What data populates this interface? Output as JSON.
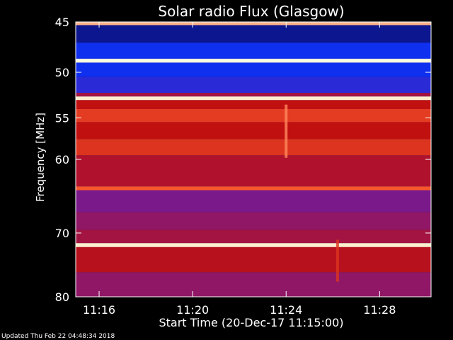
{
  "chart_data": {
    "type": "heatmap",
    "title": "Solar radio Flux (Glasgow)",
    "xlabel": "Start Time (20-Dec-17 11:15:00)",
    "ylabel": "Frequency [MHz]",
    "x_ticks": [
      "11:16",
      "11:20",
      "11:24",
      "11:28"
    ],
    "x_tick_minutes": [
      16,
      20,
      24,
      28
    ],
    "xlim_minutes": [
      15.0,
      30.2
    ],
    "y_ticks": [
      45,
      50,
      55,
      60,
      70,
      80
    ],
    "ylim_mhz": [
      45,
      80
    ],
    "y_scale": "log",
    "colors": {
      "background": "#000000",
      "low": "#0a0a60",
      "mid_low": "#1030f0",
      "mid": "#7a1a8a",
      "high": "#c01010",
      "peak": "#ffffe0"
    },
    "frequency_bands": [
      {
        "from": 45.0,
        "to": 45.3,
        "level": 0.9
      },
      {
        "from": 45.3,
        "to": 47.0,
        "level": 0.08
      },
      {
        "from": 47.0,
        "to": 48.6,
        "level": 0.25
      },
      {
        "from": 48.6,
        "to": 49.0,
        "level": 1.0
      },
      {
        "from": 49.0,
        "to": 50.5,
        "level": 0.25
      },
      {
        "from": 50.5,
        "to": 52.2,
        "level": 0.3
      },
      {
        "from": 52.2,
        "to": 52.6,
        "level": 0.55
      },
      {
        "from": 52.6,
        "to": 53.0,
        "level": 0.98
      },
      {
        "from": 53.0,
        "to": 54.0,
        "level": 0.62
      },
      {
        "from": 54.0,
        "to": 55.5,
        "level": 0.72
      },
      {
        "from": 55.5,
        "to": 57.5,
        "level": 0.62
      },
      {
        "from": 57.5,
        "to": 59.5,
        "level": 0.7
      },
      {
        "from": 59.5,
        "to": 63.5,
        "level": 0.58
      },
      {
        "from": 63.5,
        "to": 64.0,
        "level": 0.78
      },
      {
        "from": 64.0,
        "to": 67.0,
        "level": 0.45
      },
      {
        "from": 67.0,
        "to": 69.5,
        "level": 0.5
      },
      {
        "from": 69.5,
        "to": 71.5,
        "level": 0.55
      },
      {
        "from": 71.5,
        "to": 72.1,
        "level": 0.98
      },
      {
        "from": 72.1,
        "to": 76.0,
        "level": 0.6
      },
      {
        "from": 76.0,
        "to": 80.0,
        "level": 0.5
      }
    ],
    "bursts": [
      {
        "minute": 24.0,
        "from": 53.5,
        "to": 59.8,
        "level": 0.85
      },
      {
        "minute": 26.2,
        "from": 71.0,
        "to": 77.5,
        "level": 0.7
      }
    ],
    "annotation": "Updated Thu Feb 22 04:48:34 2018"
  }
}
